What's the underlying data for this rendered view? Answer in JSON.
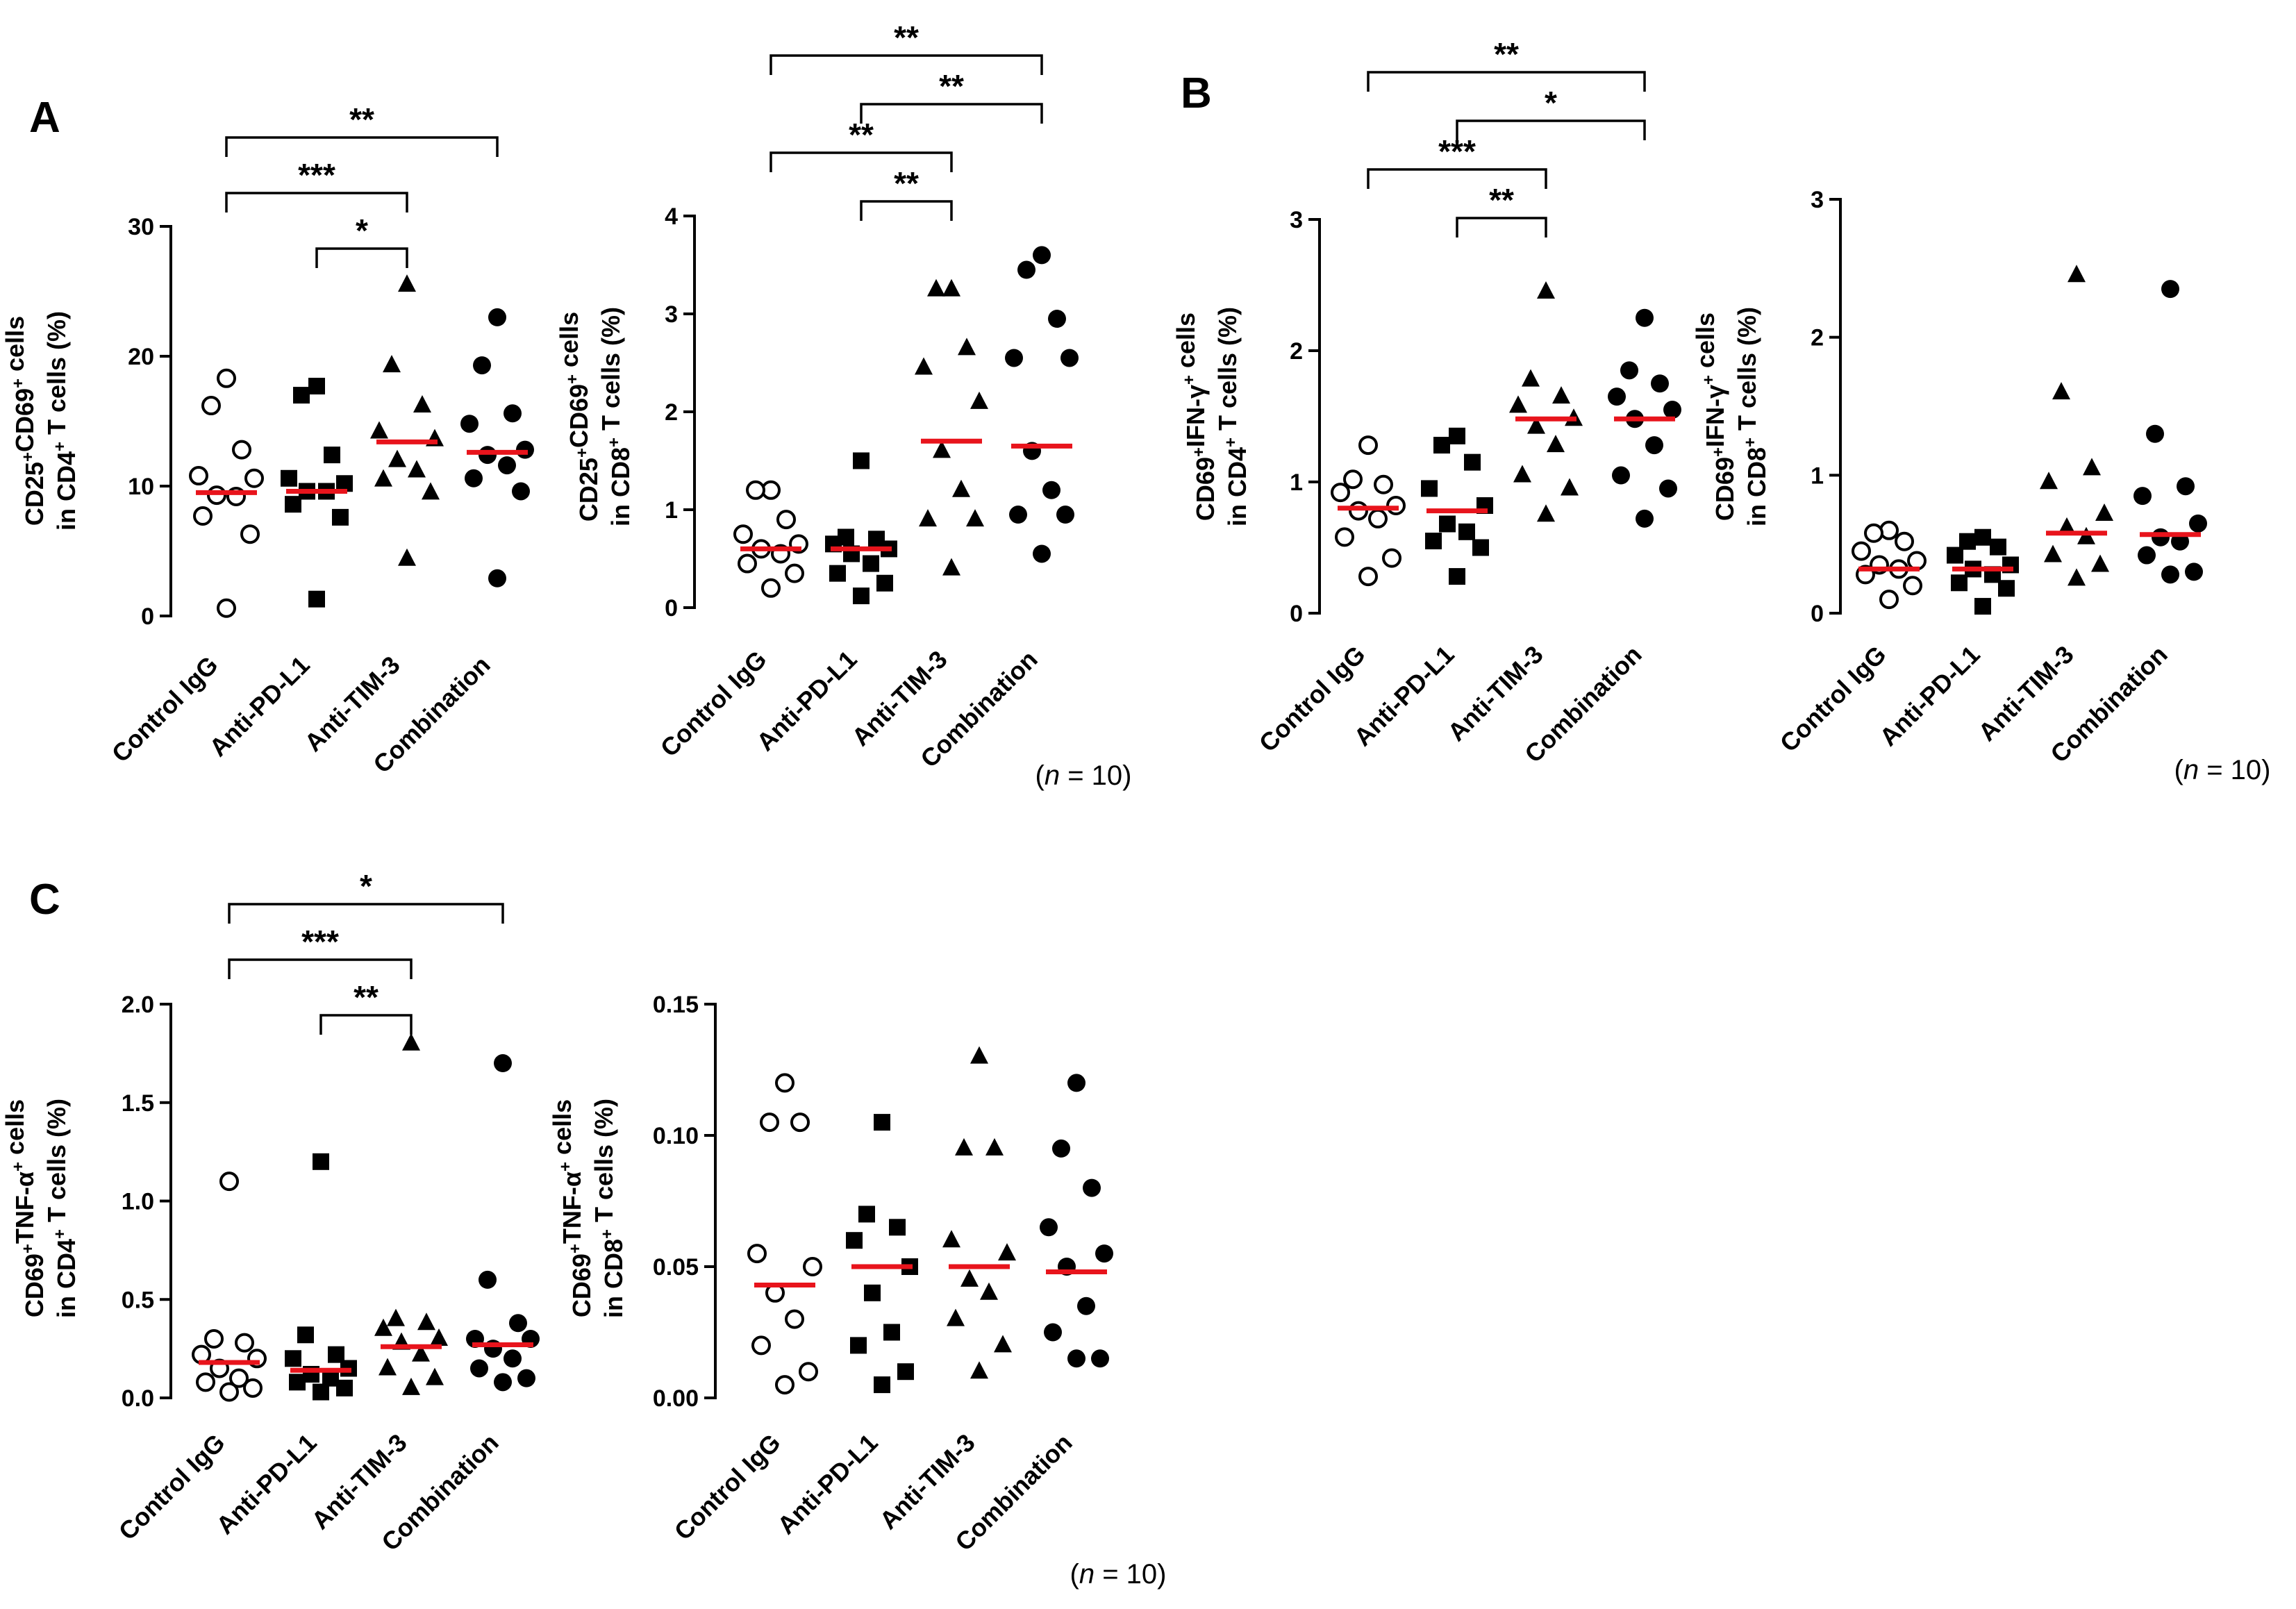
{
  "figure": {
    "sample_size": "(n = 10)",
    "sample_size_n": "n",
    "sample_size_rest": " = 10)",
    "sample_size_open": "(",
    "colors": {
      "median": "#e8141c",
      "ink": "#000000",
      "background": "#ffffff"
    }
  },
  "chart_data": [
    {
      "panel": "A",
      "type": "scatter",
      "categories": [
        "Control IgG",
        "Anti-PD-L1",
        "Anti-TIM-3",
        "Combination"
      ],
      "markers": [
        "open-circle",
        "square",
        "triangle",
        "circle"
      ],
      "ylabel_line1": [
        [
          "CD25",
          ""
        ],
        [
          "+",
          "sup"
        ],
        [
          "CD69",
          ""
        ],
        [
          "+",
          "sup"
        ],
        [
          " cells",
          ""
        ]
      ],
      "ylabel_line2": [
        [
          "in CD4",
          ""
        ],
        [
          "+",
          "sup"
        ],
        [
          " T cells (%)",
          ""
        ]
      ],
      "ylim": [
        0,
        30
      ],
      "yticks": [
        0,
        10,
        20,
        30
      ],
      "yticklabels": [
        "0",
        "10",
        "20",
        "30"
      ],
      "series": [
        {
          "name": "Control IgG",
          "values": [
            18.3,
            16.2,
            12.8,
            10.8,
            10.6,
            9.3,
            9.2,
            7.7,
            6.3,
            0.6
          ],
          "median": 9.5
        },
        {
          "name": "Anti-PD-L1",
          "values": [
            17.7,
            17.0,
            12.4,
            10.6,
            10.2,
            9.6,
            9.6,
            8.6,
            7.6,
            1.3
          ],
          "median": 9.6
        },
        {
          "name": "Anti-TIM-3",
          "values": [
            25.5,
            19.3,
            16.2,
            14.2,
            13.6,
            12.0,
            11.2,
            10.5,
            9.5,
            4.4
          ],
          "median": 13.4
        },
        {
          "name": "Combination",
          "values": [
            23.0,
            19.3,
            15.6,
            14.8,
            12.8,
            12.4,
            11.6,
            10.6,
            9.6,
            2.9
          ],
          "median": 12.6
        }
      ],
      "significance": [
        {
          "from": 0,
          "to": 3,
          "label": "**"
        },
        {
          "from": 0,
          "to": 2,
          "label": "***"
        },
        {
          "from": 1,
          "to": 2,
          "label": "*"
        }
      ]
    },
    {
      "panel": "",
      "type": "scatter",
      "categories": [
        "Control IgG",
        "Anti-PD-L1",
        "Anti-TIM-3",
        "Combination"
      ],
      "markers": [
        "open-circle",
        "square",
        "triangle",
        "circle"
      ],
      "ylabel_line1": [
        [
          "CD25",
          ""
        ],
        [
          "+",
          "sup"
        ],
        [
          "CD69",
          ""
        ],
        [
          "+",
          "sup"
        ],
        [
          " cells",
          ""
        ]
      ],
      "ylabel_line2": [
        [
          "in CD8",
          ""
        ],
        [
          "+",
          "sup"
        ],
        [
          " T cells (%)",
          ""
        ]
      ],
      "ylim": [
        0,
        4
      ],
      "yticks": [
        0,
        1,
        2,
        3,
        4
      ],
      "yticklabels": [
        "0",
        "1",
        "2",
        "3",
        "4"
      ],
      "series": [
        {
          "name": "Control IgG",
          "values": [
            1.2,
            1.2,
            0.9,
            0.75,
            0.65,
            0.6,
            0.55,
            0.45,
            0.35,
            0.2
          ],
          "median": 0.6
        },
        {
          "name": "Anti-PD-L1",
          "values": [
            1.5,
            0.72,
            0.7,
            0.65,
            0.6,
            0.55,
            0.45,
            0.35,
            0.25,
            0.12
          ],
          "median": 0.6
        },
        {
          "name": "Anti-TIM-3",
          "values": [
            3.25,
            3.25,
            2.65,
            2.45,
            2.1,
            1.6,
            1.2,
            0.9,
            0.9,
            0.4
          ],
          "median": 1.7
        },
        {
          "name": "Combination",
          "values": [
            3.6,
            3.45,
            2.95,
            2.55,
            2.55,
            1.6,
            1.2,
            0.95,
            0.95,
            0.55
          ],
          "median": 1.65
        }
      ],
      "significance": [
        {
          "from": 0,
          "to": 3,
          "label": "**"
        },
        {
          "from": 1,
          "to": 3,
          "label": "**"
        },
        {
          "from": 0,
          "to": 2,
          "label": "**"
        },
        {
          "from": 1,
          "to": 2,
          "label": "**"
        }
      ]
    },
    {
      "panel": "B",
      "type": "scatter",
      "categories": [
        "Control IgG",
        "Anti-PD-L1",
        "Anti-TIM-3",
        "Combination"
      ],
      "markers": [
        "open-circle",
        "square",
        "triangle",
        "circle"
      ],
      "ylabel_line1": [
        [
          "CD69",
          ""
        ],
        [
          "+",
          "sup"
        ],
        [
          "IFN-γ",
          ""
        ],
        [
          "+",
          "sup"
        ],
        [
          " cells",
          ""
        ]
      ],
      "ylabel_line2": [
        [
          "in CD4",
          ""
        ],
        [
          "+",
          "sup"
        ],
        [
          " T cells (%)",
          ""
        ]
      ],
      "ylim": [
        0,
        3
      ],
      "yticks": [
        0,
        1,
        2,
        3
      ],
      "yticklabels": [
        "0",
        "1",
        "2",
        "3"
      ],
      "series": [
        {
          "name": "Control IgG",
          "values": [
            1.28,
            1.02,
            0.98,
            0.92,
            0.82,
            0.78,
            0.72,
            0.58,
            0.42,
            0.28
          ],
          "median": 0.8
        },
        {
          "name": "Anti-PD-L1",
          "values": [
            1.35,
            1.28,
            1.15,
            0.95,
            0.82,
            0.68,
            0.62,
            0.55,
            0.5,
            0.28
          ],
          "median": 0.78
        },
        {
          "name": "Anti-TIM-3",
          "values": [
            2.45,
            1.78,
            1.65,
            1.58,
            1.48,
            1.42,
            1.28,
            1.05,
            0.95,
            0.75
          ],
          "median": 1.48
        },
        {
          "name": "Combination",
          "values": [
            2.25,
            1.85,
            1.75,
            1.65,
            1.55,
            1.48,
            1.28,
            1.05,
            0.95,
            0.72
          ],
          "median": 1.48
        }
      ],
      "significance": [
        {
          "from": 0,
          "to": 3,
          "label": "**"
        },
        {
          "from": 1,
          "to": 3,
          "label": "*"
        },
        {
          "from": 0,
          "to": 2,
          "label": "***"
        },
        {
          "from": 1,
          "to": 2,
          "label": "**"
        }
      ]
    },
    {
      "panel": "",
      "type": "scatter",
      "categories": [
        "Control IgG",
        "Anti-PD-L1",
        "Anti-TIM-3",
        "Combination"
      ],
      "markers": [
        "open-circle",
        "square",
        "triangle",
        "circle"
      ],
      "ylabel_line1": [
        [
          "CD69",
          ""
        ],
        [
          "+",
          "sup"
        ],
        [
          "IFN-γ",
          ""
        ],
        [
          "+",
          "sup"
        ],
        [
          " cells",
          ""
        ]
      ],
      "ylabel_line2": [
        [
          "in CD8",
          ""
        ],
        [
          "+",
          "sup"
        ],
        [
          " T cells (%)",
          ""
        ]
      ],
      "ylim": [
        0,
        3
      ],
      "yticks": [
        0,
        1,
        2,
        3
      ],
      "yticklabels": [
        "0",
        "1",
        "2",
        "3"
      ],
      "series": [
        {
          "name": "Control IgG",
          "values": [
            0.6,
            0.58,
            0.52,
            0.45,
            0.38,
            0.35,
            0.32,
            0.28,
            0.2,
            0.1
          ],
          "median": 0.32
        },
        {
          "name": "Anti-PD-L1",
          "values": [
            0.55,
            0.52,
            0.48,
            0.42,
            0.35,
            0.32,
            0.28,
            0.22,
            0.18,
            0.05
          ],
          "median": 0.32
        },
        {
          "name": "Anti-TIM-3",
          "values": [
            2.45,
            1.6,
            1.05,
            0.95,
            0.72,
            0.62,
            0.55,
            0.42,
            0.35,
            0.25
          ],
          "median": 0.58
        },
        {
          "name": "Combination",
          "values": [
            2.35,
            1.3,
            0.92,
            0.85,
            0.65,
            0.55,
            0.52,
            0.42,
            0.3,
            0.28
          ],
          "median": 0.57
        }
      ],
      "significance": []
    },
    {
      "panel": "C",
      "type": "scatter",
      "categories": [
        "Control IgG",
        "Anti-PD-L1",
        "Anti-TIM-3",
        "Combination"
      ],
      "markers": [
        "open-circle",
        "square",
        "triangle",
        "circle"
      ],
      "ylabel_line1": [
        [
          "CD69",
          ""
        ],
        [
          "+",
          "sup"
        ],
        [
          "TNF-α",
          ""
        ],
        [
          "+",
          "sup"
        ],
        [
          " cells",
          ""
        ]
      ],
      "ylabel_line2": [
        [
          "in CD4",
          ""
        ],
        [
          "+",
          "sup"
        ],
        [
          " T cells (%)",
          ""
        ]
      ],
      "ylim": [
        0,
        2.0
      ],
      "yticks": [
        0,
        0.5,
        1.0,
        1.5,
        2.0
      ],
      "yticklabels": [
        "0.0",
        "0.5",
        "1.0",
        "1.5",
        "2.0"
      ],
      "series": [
        {
          "name": "Control IgG",
          "values": [
            1.1,
            0.3,
            0.28,
            0.22,
            0.2,
            0.15,
            0.1,
            0.08,
            0.05,
            0.03
          ],
          "median": 0.18
        },
        {
          "name": "Anti-PD-L1",
          "values": [
            1.2,
            0.32,
            0.22,
            0.2,
            0.15,
            0.12,
            0.1,
            0.08,
            0.05,
            0.03
          ],
          "median": 0.14
        },
        {
          "name": "Anti-TIM-3",
          "values": [
            1.8,
            0.4,
            0.38,
            0.35,
            0.3,
            0.28,
            0.22,
            0.15,
            0.1,
            0.05
          ],
          "median": 0.26
        },
        {
          "name": "Combination",
          "values": [
            1.7,
            0.6,
            0.38,
            0.3,
            0.3,
            0.25,
            0.2,
            0.15,
            0.1,
            0.08
          ],
          "median": 0.27
        }
      ],
      "significance": [
        {
          "from": 0,
          "to": 3,
          "label": "*"
        },
        {
          "from": 0,
          "to": 2,
          "label": "***"
        },
        {
          "from": 1,
          "to": 2,
          "label": "**"
        }
      ]
    },
    {
      "panel": "",
      "type": "scatter",
      "categories": [
        "Control IgG",
        "Anti-PD-L1",
        "Anti-TIM-3",
        "Combination"
      ],
      "markers": [
        "open-circle",
        "square",
        "triangle",
        "circle"
      ],
      "ylabel_line1": [
        [
          "CD69",
          ""
        ],
        [
          "+",
          "sup"
        ],
        [
          "TNF-α",
          ""
        ],
        [
          "+",
          "sup"
        ],
        [
          " cells",
          ""
        ]
      ],
      "ylabel_line2": [
        [
          "in CD8",
          ""
        ],
        [
          "+",
          "sup"
        ],
        [
          " T cells (%)",
          ""
        ]
      ],
      "ylim": [
        0,
        0.15
      ],
      "yticks": [
        0,
        0.05,
        0.1,
        0.15
      ],
      "yticklabels": [
        "0.00",
        "0.05",
        "0.10",
        "0.15"
      ],
      "series": [
        {
          "name": "Control IgG",
          "values": [
            0.12,
            0.105,
            0.105,
            0.055,
            0.05,
            0.04,
            0.03,
            0.02,
            0.01,
            0.005
          ],
          "median": 0.043
        },
        {
          "name": "Anti-PD-L1",
          "values": [
            0.105,
            0.07,
            0.065,
            0.06,
            0.05,
            0.04,
            0.025,
            0.02,
            0.01,
            0.005
          ],
          "median": 0.05
        },
        {
          "name": "Anti-TIM-3",
          "values": [
            0.13,
            0.095,
            0.095,
            0.06,
            0.055,
            0.045,
            0.04,
            0.03,
            0.02,
            0.01
          ],
          "median": 0.05
        },
        {
          "name": "Combination",
          "values": [
            0.12,
            0.095,
            0.08,
            0.065,
            0.055,
            0.05,
            0.035,
            0.025,
            0.015,
            0.015
          ],
          "median": 0.048
        }
      ],
      "significance": []
    }
  ]
}
